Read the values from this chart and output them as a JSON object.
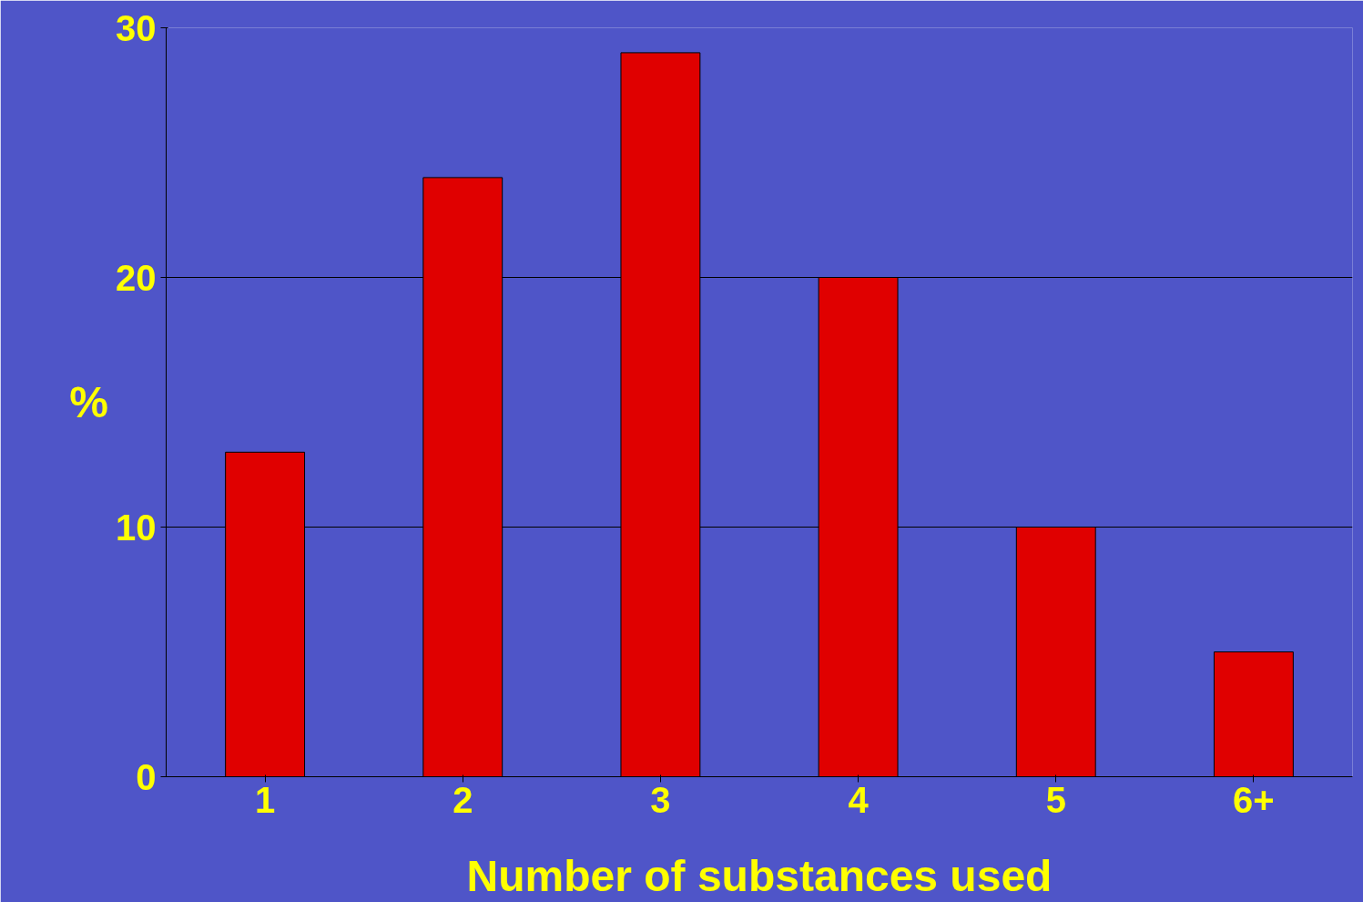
{
  "chart_data": {
    "type": "bar",
    "xlabel": "Number of substances used",
    "ylabel": "%",
    "categories": [
      "1",
      "2",
      "3",
      "4",
      "5",
      "6+"
    ],
    "values": [
      13,
      24,
      29,
      20,
      10,
      5
    ],
    "color": "#e00000",
    "ylim": [
      0,
      30
    ],
    "yticks": [
      0,
      10,
      20,
      30
    ],
    "grid": "y"
  }
}
